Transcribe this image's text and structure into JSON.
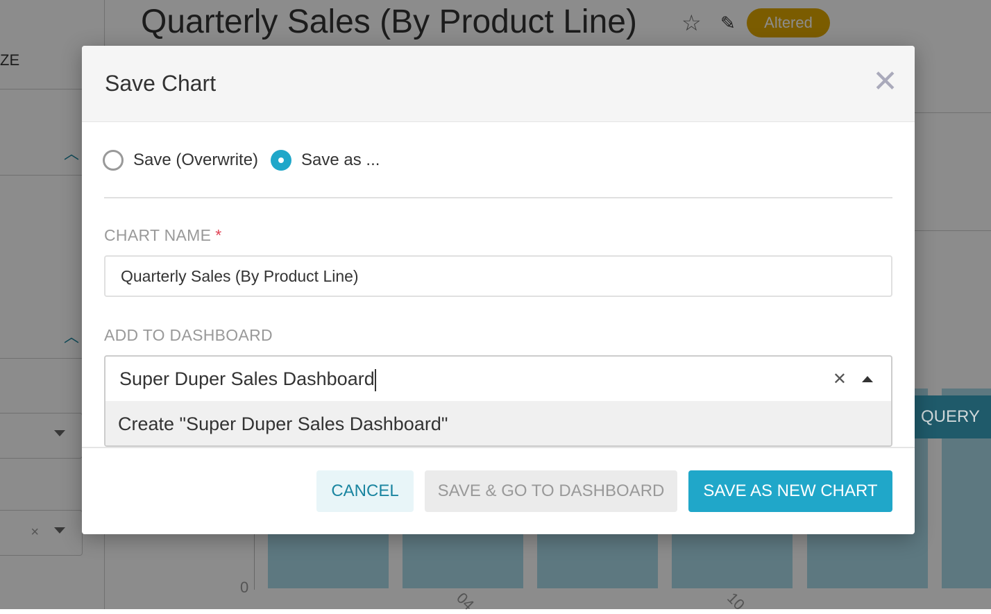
{
  "background": {
    "chart_title": "Quarterly Sales (By Product Line)",
    "status_badge": "Altered",
    "left_panel_label": "ZE",
    "run_query_label": "QUERY",
    "y_axis_zero": "0",
    "x_ticks": [
      "04",
      "10"
    ],
    "colors": {
      "badge": "#e0a800",
      "accent": "#20a7c9",
      "bars": "#a9dbe9"
    }
  },
  "modal": {
    "title": "Save Chart",
    "radio_options": [
      {
        "label": "Save (Overwrite)",
        "checked": false
      },
      {
        "label": "Save as ...",
        "checked": true
      }
    ],
    "chart_name_label": "CHART NAME",
    "required_marker": "*",
    "chart_name_value": "Quarterly Sales (By Product Line)",
    "dashboard_label": "ADD TO DASHBOARD",
    "dashboard_value": "Super Duper Sales Dashboard",
    "dashboard_option": "Create \"Super Duper Sales Dashboard\"",
    "buttons": {
      "cancel": "CANCEL",
      "save_go": "SAVE & GO TO DASHBOARD",
      "save_new": "SAVE AS NEW CHART"
    }
  }
}
